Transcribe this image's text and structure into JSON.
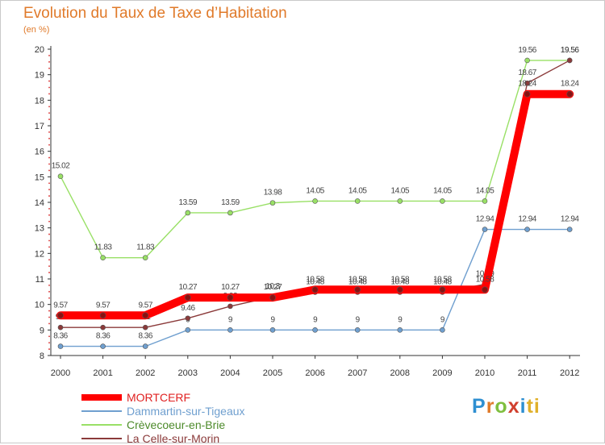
{
  "title": "Evolution du Taux de Taxe d’Habitation",
  "unit": "(en %)",
  "brand": {
    "text": "Proxiti"
  },
  "chart_data": {
    "type": "line",
    "x": [
      "2000",
      "2001",
      "2002",
      "2003",
      "2004",
      "2005",
      "2006",
      "2007",
      "2008",
      "2009",
      "2010",
      "2011",
      "2012"
    ],
    "ylim": [
      8,
      20
    ],
    "y_ticks": [
      "8",
      "9",
      "10",
      "11",
      "12",
      "13",
      "14",
      "15",
      "16",
      "17",
      "18",
      "19",
      "20"
    ],
    "grid": false,
    "legend": "bottom-left",
    "series": [
      {
        "name": "MORTCERF",
        "color": "#ff0000",
        "emphasis": true,
        "values": [
          9.57,
          9.57,
          9.57,
          10.27,
          10.27,
          10.27,
          10.58,
          10.58,
          10.58,
          10.58,
          10.58,
          18.24,
          18.24
        ],
        "labels": [
          "9.57",
          "9.57",
          "9.57",
          "10.27",
          "10.27",
          "10.27",
          "10.58",
          "10.58",
          "10.58",
          "10.58",
          "10.58",
          "18.24",
          "18.24"
        ]
      },
      {
        "name": "Dammartin-sur-Tigeaux",
        "color": "#6f9fcf",
        "values": [
          8.36,
          8.36,
          8.36,
          9,
          9,
          9,
          9,
          9,
          9,
          9,
          12.94,
          12.94,
          12.94
        ],
        "labels": [
          "8.36",
          "8.36",
          "8.36",
          "9",
          "9",
          "9",
          "9",
          "9",
          "9",
          "9",
          "12.94",
          "12.94",
          "12.94"
        ]
      },
      {
        "name": "Crèvecoeur-en-Brie",
        "color": "#99e066",
        "values": [
          15.02,
          11.83,
          11.83,
          13.59,
          13.59,
          13.98,
          14.05,
          14.05,
          14.05,
          14.05,
          14.05,
          19.56,
          19.56
        ],
        "labels": [
          "15.02",
          "11.83",
          "11.83",
          "13.59",
          "13.59",
          "13.98",
          "14.05",
          "14.05",
          "14.05",
          "14.05",
          "14.05",
          "19.56",
          "19.56"
        ]
      },
      {
        "name": "La Celle-sur-Morin",
        "color": "#8b3a3a",
        "values": [
          9.1,
          9.1,
          9.1,
          9.46,
          9.93,
          10.3,
          10.48,
          10.48,
          10.48,
          10.48,
          10.79,
          18.67,
          19.56
        ],
        "labels": [
          "9.1",
          "9.1",
          "9.1",
          "9.46",
          "9.93",
          "10.3",
          "10.48",
          "10.48",
          "10.48",
          "10.48",
          "10.79",
          "18.67",
          "19.56"
        ]
      }
    ]
  }
}
